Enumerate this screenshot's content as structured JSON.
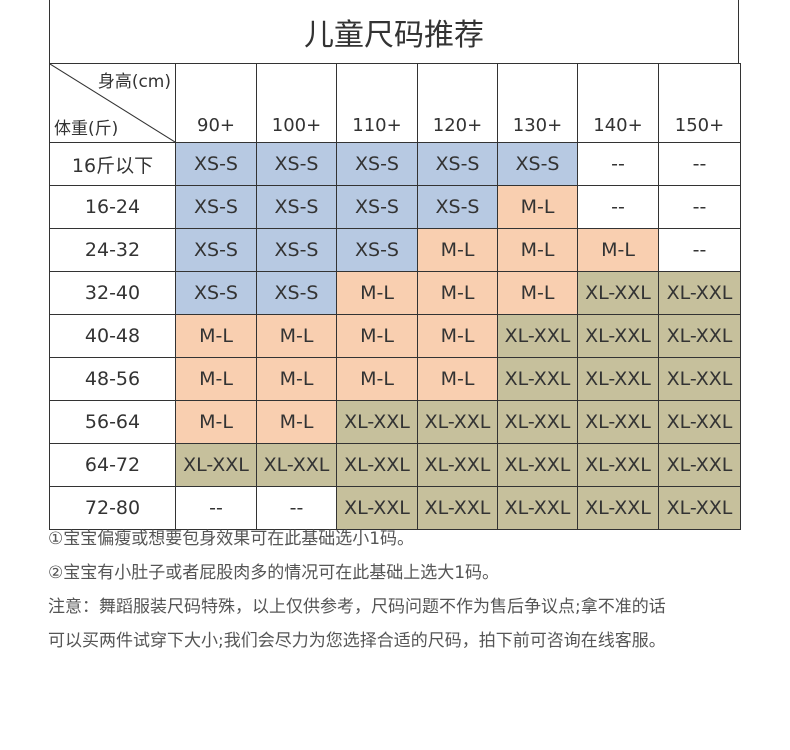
{
  "title": "儿童尺码推荐",
  "corner": {
    "height_label": "身高(cm)",
    "weight_label": "体重(斤)"
  },
  "columns": [
    "90+",
    "100+",
    "110+",
    "120+",
    "130+",
    "140+",
    "150+"
  ],
  "rows": [
    {
      "weight": "16斤以下",
      "cells": [
        "XS-S",
        "XS-S",
        "XS-S",
        "XS-S",
        "XS-S",
        "--",
        "--"
      ]
    },
    {
      "weight": "16-24",
      "cells": [
        "XS-S",
        "XS-S",
        "XS-S",
        "XS-S",
        "M-L",
        "--",
        "--"
      ]
    },
    {
      "weight": "24-32",
      "cells": [
        "XS-S",
        "XS-S",
        "XS-S",
        "M-L",
        "M-L",
        "M-L",
        "--"
      ]
    },
    {
      "weight": "32-40",
      "cells": [
        "XS-S",
        "XS-S",
        "M-L",
        "M-L",
        "M-L",
        "XL-XXL",
        "XL-XXL"
      ]
    },
    {
      "weight": "40-48",
      "cells": [
        "M-L",
        "M-L",
        "M-L",
        "M-L",
        "XL-XXL",
        "XL-XXL",
        "XL-XXL"
      ]
    },
    {
      "weight": "48-56",
      "cells": [
        "M-L",
        "M-L",
        "M-L",
        "M-L",
        "XL-XXL",
        "XL-XXL",
        "XL-XXL"
      ]
    },
    {
      "weight": "56-64",
      "cells": [
        "M-L",
        "M-L",
        "XL-XXL",
        "XL-XXL",
        "XL-XXL",
        "XL-XXL",
        "XL-XXL"
      ]
    },
    {
      "weight": "64-72",
      "cells": [
        "XL-XXL",
        "XL-XXL",
        "XL-XXL",
        "XL-XXL",
        "XL-XXL",
        "XL-XXL",
        "XL-XXL"
      ]
    },
    {
      "weight": "72-80",
      "cells": [
        "--",
        "--",
        "XL-XXL",
        "XL-XXL",
        "XL-XXL",
        "XL-XXL",
        "XL-XXL"
      ]
    }
  ],
  "size_colors": {
    "XS-S": "#b7c9e2",
    "M-L": "#f9cfb0",
    "XL-XXL": "#c6c09c",
    "--": "#ffffff"
  },
  "notes": [
    "①宝宝偏瘦或想要包身效果可在此基础选小1码。",
    "②宝宝有小肚子或者屁股肉多的情况可在此基础上选大1码。",
    "注意：舞蹈服装尺码特殊，以上仅供参考，尺码问题不作为售后争议点;拿不准的话",
    "可以买两件试穿下大小;我们会尽力为您选择合适的尺码，拍下前可咨询在线客服。"
  ]
}
